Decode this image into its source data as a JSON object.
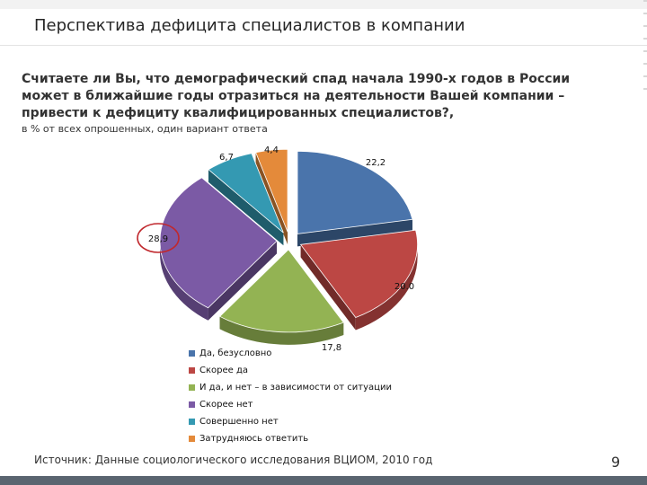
{
  "slide": {
    "title": "Перспектива дефицита специалистов в компании",
    "question": "Считаете ли Вы, что демографический спад начала 1990-х годов в России может в ближайшие годы отразиться на деятельности Вашей компании – привести к дефициту квалифицированных специалистов?,",
    "subtitle": "в % от всех опрошенных, один вариант ответа",
    "source": "Источник: Данные социологического исследования ВЦИОМ, 2010 год",
    "page_number": "9"
  },
  "chart_data": {
    "type": "pie",
    "title": "",
    "legend_position": "bottom",
    "slices": [
      {
        "label": "Да, безусловно",
        "value": 22.2,
        "value_label": "22,2",
        "color": "#4a74ab"
      },
      {
        "label": "Скорее да",
        "value": 20.0,
        "value_label": "20.0",
        "color": "#bc4744"
      },
      {
        "label": "И да, и нет – в зависимости от ситуации",
        "value": 17.8,
        "value_label": "17,8",
        "color": "#93b353"
      },
      {
        "label": "Скорее нет",
        "value": 28.9,
        "value_label": "28,9",
        "color": "#7b5aa5",
        "highlighted": true
      },
      {
        "label": "Совершенно нет",
        "value": 6.7,
        "value_label": "6,7",
        "color": "#3499b2"
      },
      {
        "label": "Затрудняюсь ответить",
        "value": 4.4,
        "value_label": "4,4",
        "color": "#e48a3a"
      }
    ],
    "highlight_color": "#c0282d"
  }
}
